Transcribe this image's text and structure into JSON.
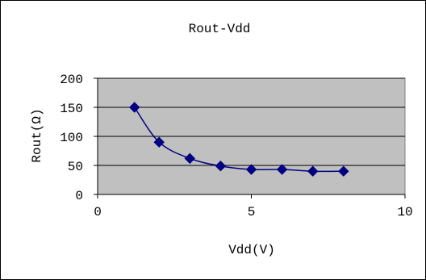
{
  "chart_data": {
    "type": "scatter",
    "title": "Rout-Vdd",
    "xlabel": "Vdd(V)",
    "ylabel": "Rout(Ω)",
    "xlim": [
      0,
      10
    ],
    "ylim": [
      0,
      200
    ],
    "x_ticks": [
      "0",
      "5",
      "10"
    ],
    "y_ticks": [
      "0",
      "50",
      "100",
      "150",
      "200"
    ],
    "grid": "horizontal",
    "legend": "none",
    "plot_area_color": "#C0C0C0",
    "series": [
      {
        "color": "#000080",
        "marker": "diamond",
        "line": "smoothed",
        "points": [
          {
            "x": 1.2,
            "y": 150
          },
          {
            "x": 2.0,
            "y": 90
          },
          {
            "x": 3.0,
            "y": 62
          },
          {
            "x": 4.0,
            "y": 49
          },
          {
            "x": 5.0,
            "y": 43
          },
          {
            "x": 6.0,
            "y": 43
          },
          {
            "x": 7.0,
            "y": 40
          },
          {
            "x": 8.0,
            "y": 40
          }
        ]
      }
    ]
  }
}
